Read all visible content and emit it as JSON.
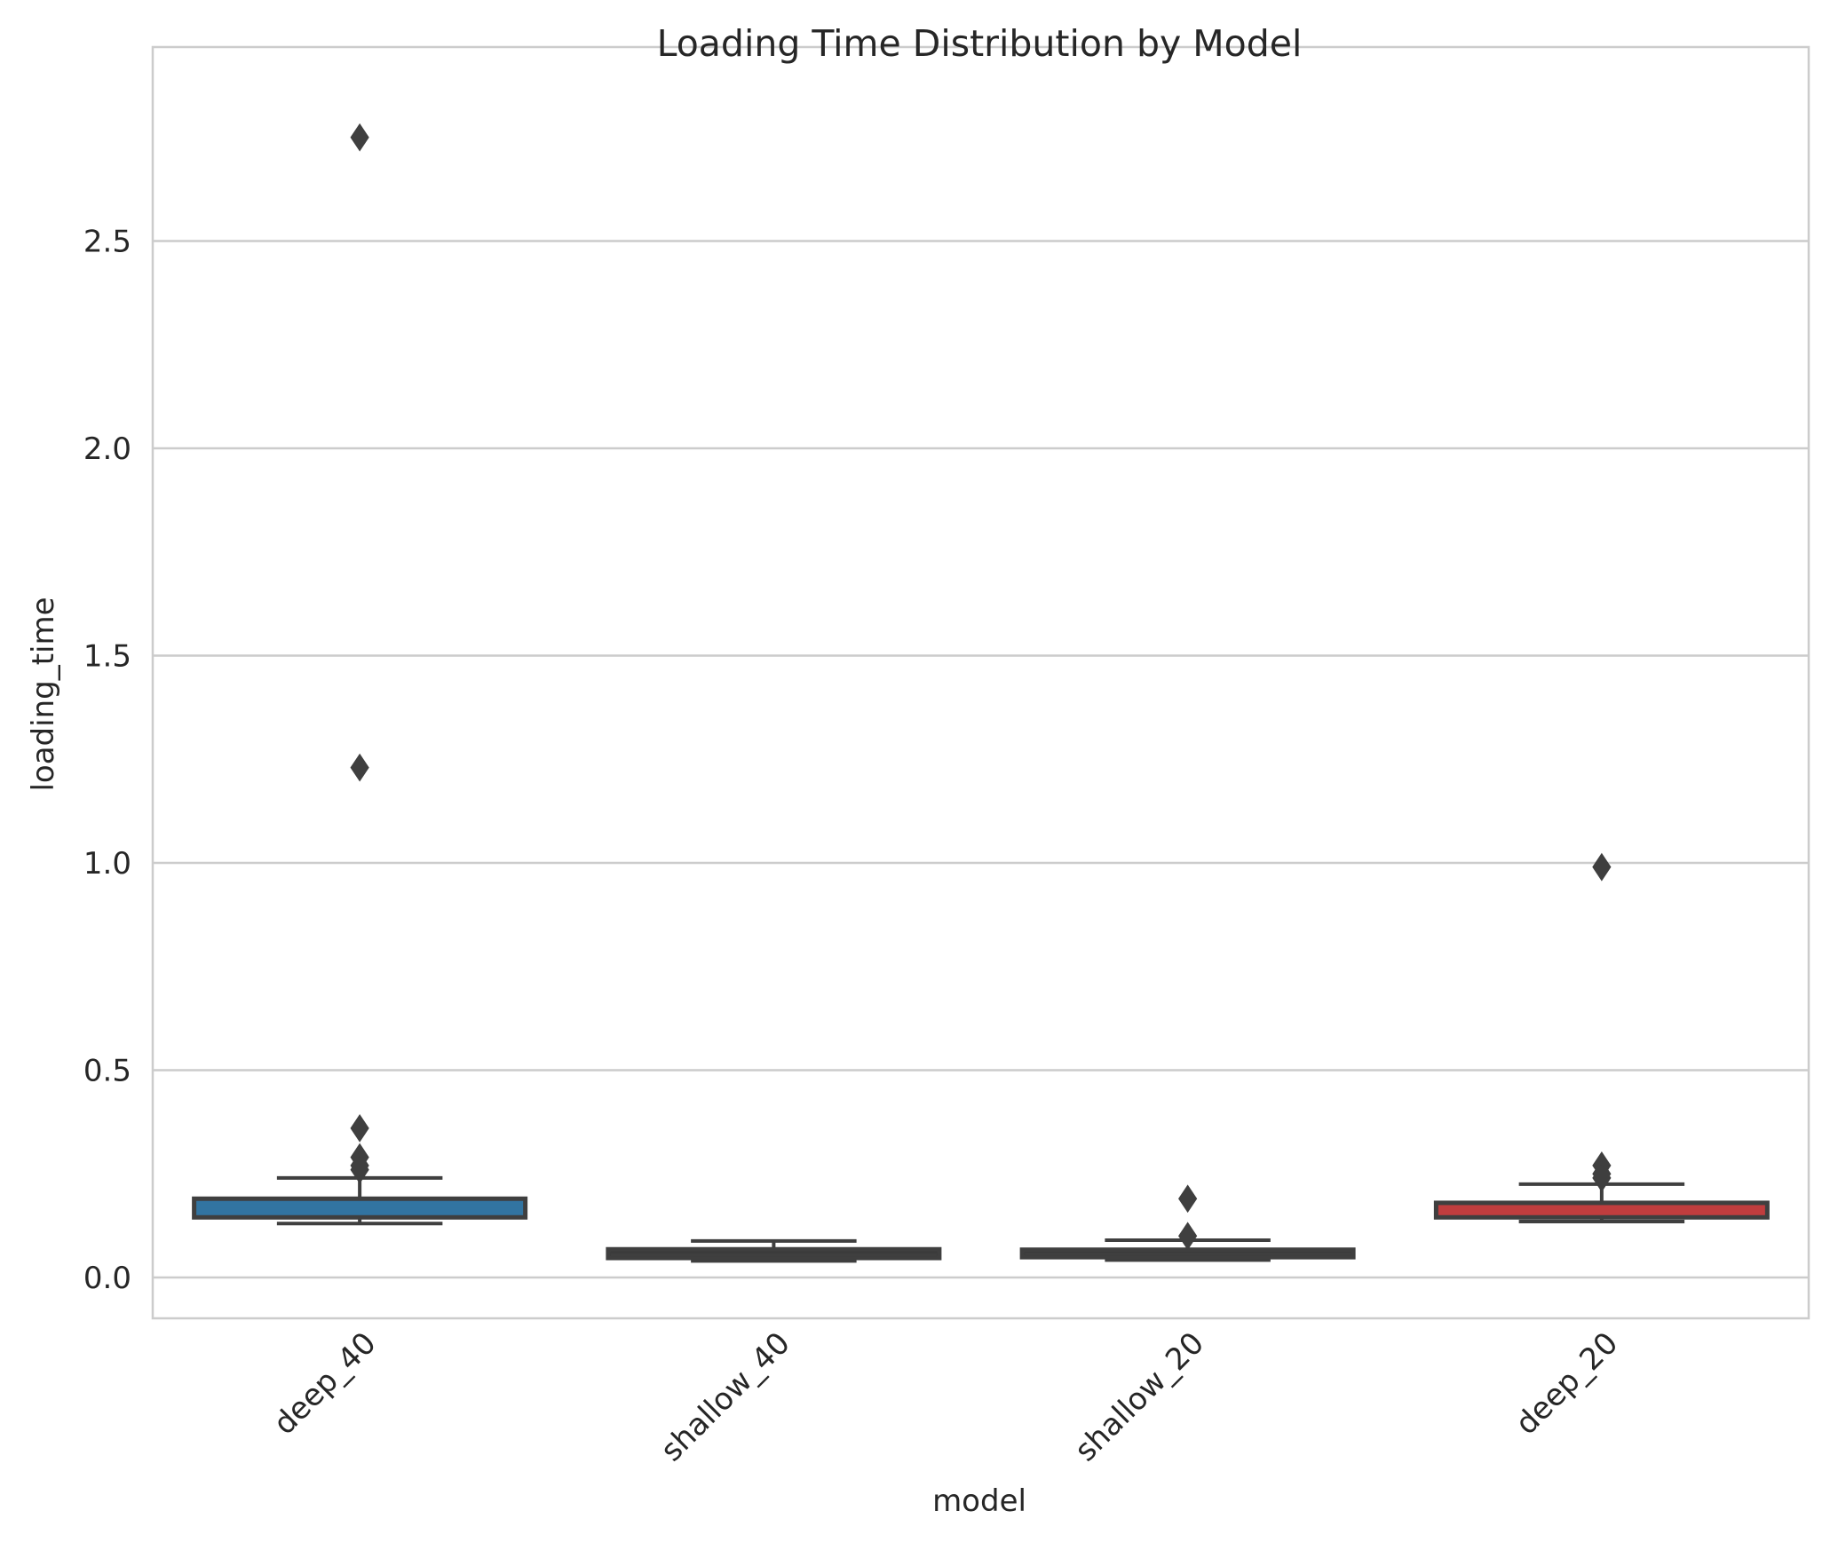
{
  "chart_data": {
    "type": "box",
    "title": "Loading Time Distribution by Model",
    "xlabel": "model",
    "ylabel": "loading_time",
    "ylim": [
      -0.1,
      2.9
    ],
    "yticks": [
      "0.0",
      "0.5",
      "1.0",
      "1.5",
      "2.0",
      "2.5"
    ],
    "grid": true,
    "categories": [
      "deep_40",
      "shallow_40",
      "shallow_20",
      "deep_20"
    ],
    "boxes": [
      {
        "category": "deep_40",
        "whisker_low": 0.13,
        "q1": 0.145,
        "median": 0.172,
        "q3": 0.19,
        "whisker_high": 0.24,
        "outliers": [
          2.75,
          1.23,
          0.36,
          0.29,
          0.27,
          0.26
        ],
        "color": "#3274a1"
      },
      {
        "category": "shallow_40",
        "whisker_low": 0.04,
        "q1": 0.047,
        "median": 0.055,
        "q3": 0.068,
        "whisker_high": 0.088,
        "outliers": [],
        "color": "#3a3a3a"
      },
      {
        "category": "shallow_20",
        "whisker_low": 0.042,
        "q1": 0.049,
        "median": 0.056,
        "q3": 0.067,
        "whisker_high": 0.09,
        "outliers": [
          0.19,
          0.1
        ],
        "color": "#3a3a3a"
      },
      {
        "category": "deep_20",
        "whisker_low": 0.135,
        "q1": 0.145,
        "median": 0.165,
        "q3": 0.18,
        "whisker_high": 0.225,
        "outliers": [
          0.99,
          0.27,
          0.25,
          0.24
        ],
        "color": "#c03d3e"
      }
    ]
  }
}
